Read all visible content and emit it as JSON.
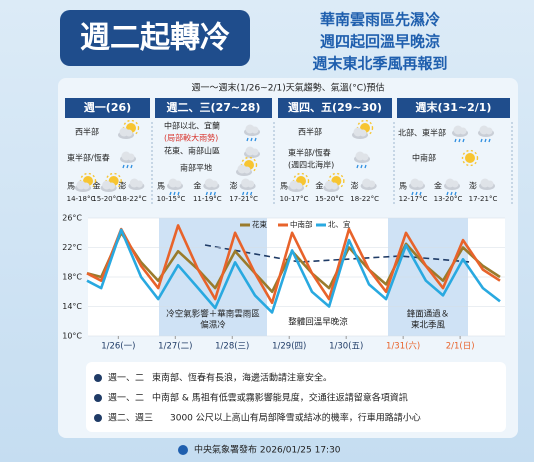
{
  "header": {
    "title": "週二起轉冷",
    "headline": [
      "華南雲雨區先濕冷",
      "週四起回溫早晚涼",
      "週末東北季風再報到"
    ],
    "subtitle": "週一～週末(1/26~2/1)天氣趨勢、氣溫(°C)預估"
  },
  "periods": [
    {
      "label": "週一(26)",
      "regions": [
        "西半部",
        "東半部/恆春"
      ],
      "temps": [
        {
          "place": "馬",
          "range": "14-18°C"
        },
        {
          "place": "金",
          "range": "15-20°C"
        },
        {
          "place": "澎",
          "range": "18-22°C"
        }
      ]
    },
    {
      "label": "週二、三(27~28)",
      "regions": [
        "中部以北、宜蘭",
        "花東、南部山區",
        "南部平地"
      ],
      "note": "(局部較大雨勢)",
      "temps": [
        {
          "place": "馬",
          "range": "10-15°C"
        },
        {
          "place": "金",
          "range": "11-19°C"
        },
        {
          "place": "澎",
          "range": "17-21°C"
        }
      ]
    },
    {
      "label": "週四、五(29~30)",
      "regions": [
        "西半部",
        "東半部/恆春"
      ],
      "note": "(週四北海岸)",
      "temps": [
        {
          "place": "馬",
          "range": "10-17°C"
        },
        {
          "place": "金",
          "range": "15-20°C"
        },
        {
          "place": "澎",
          "range": "18-22°C"
        }
      ]
    },
    {
      "label": "週末(31~2/1)",
      "regions": [
        "北部、東半部",
        "中南部"
      ],
      "temps": [
        {
          "place": "馬",
          "range": "12-17°C"
        },
        {
          "place": "金",
          "range": "13-20°C"
        },
        {
          "place": "澎",
          "range": "17-21°C"
        }
      ]
    }
  ],
  "chart_data": {
    "type": "line",
    "x": [
      -0.55,
      -0.3,
      0.05,
      0.4,
      0.7,
      1.05,
      1.4,
      1.7,
      2.05,
      2.4,
      2.7,
      3.05,
      3.4,
      3.7,
      4.05,
      4.4,
      4.7,
      5.05,
      5.4,
      5.7,
      6.05,
      6.4,
      6.7
    ],
    "series": [
      {
        "name": "花東",
        "color": "#9a7b2c",
        "values": [
          18.5,
          18,
          24,
          20,
          17.5,
          21.5,
          19,
          16.5,
          21.5,
          18.5,
          16,
          21.5,
          18.5,
          16.5,
          22,
          19,
          17,
          22.5,
          19.5,
          17.5,
          22,
          19.5,
          18
        ]
      },
      {
        "name": "中南部",
        "color": "#e8632b",
        "values": [
          18.5,
          17.5,
          24.5,
          19.5,
          16.5,
          25,
          19,
          15,
          24,
          18.5,
          14.5,
          24,
          18.5,
          15,
          24.5,
          19,
          16,
          24,
          19.5,
          16.5,
          23,
          19,
          17.5
        ]
      },
      {
        "name": "北、宜",
        "color": "#29a9e0",
        "values": [
          17.5,
          16.5,
          24.4,
          18,
          15,
          19.6,
          16.5,
          13.8,
          20,
          15.5,
          13.2,
          21.6,
          16,
          14,
          23,
          17,
          15,
          22.3,
          17.5,
          15.5,
          20.4,
          16.5,
          14.7
        ]
      }
    ],
    "xlim": [
      -0.55,
      6.7
    ],
    "ylim": [
      10,
      26
    ],
    "xticks": [
      {
        "value": 0,
        "label": "1/26(一)"
      },
      {
        "value": 1,
        "label": "1/27(二)"
      },
      {
        "value": 2,
        "label": "1/28(三)"
      },
      {
        "value": 3,
        "label": "1/29(四)"
      },
      {
        "value": 4,
        "label": "1/30(五)"
      },
      {
        "value": 5,
        "label": "1/31(六)"
      },
      {
        "value": 6,
        "label": "2/1(日)"
      }
    ],
    "xtick_colors": [
      "#1f3b66",
      "#1f3b66",
      "#1f3b66",
      "#1f3b66",
      "#1f3b66",
      "#e8632b",
      "#e8632b"
    ],
    "yticks": [
      {
        "value": 10,
        "label": "10°C"
      },
      {
        "value": 14,
        "label": "14°C"
      },
      {
        "value": 18,
        "label": "18°C"
      },
      {
        "value": 22,
        "label": "22°C"
      },
      {
        "value": 26,
        "label": "26°C"
      }
    ],
    "annotations": [
      [
        "冷空氣影響＋華南雲雨區",
        "偏濕冷"
      ],
      [
        "整體回溫早晚涼"
      ],
      [
        "鋒面通過＆",
        "東北季風"
      ]
    ]
  },
  "notes": [
    {
      "tag": "週一、二",
      "text": "東南部、恆春有長浪，海邊活動請注意安全。"
    },
    {
      "tag": "週一、二",
      "text": "中南部 & 馬祖有低雲或霧影響能見度，交通往返請留意各項資訊"
    },
    {
      "tag": "週二、週三",
      "text": "3000 公尺以上高山有局部降雪或結冰的機率，行車用路請小心"
    }
  ],
  "footer": "中央氣象署發布 2026/01/25 17:30"
}
